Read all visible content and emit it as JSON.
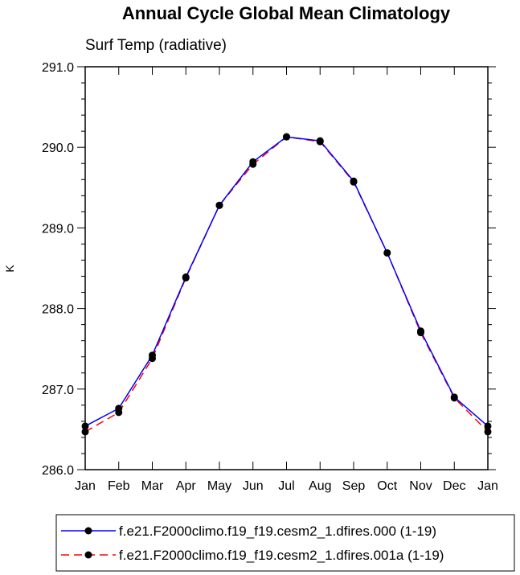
{
  "chart_data": {
    "type": "line",
    "title": "Annual Cycle Global Mean Climatology",
    "subtitle": "Surf Temp (radiative)",
    "xlabel": "",
    "ylabel": "K",
    "categories": [
      "Jan",
      "Feb",
      "Mar",
      "Apr",
      "May",
      "Jun",
      "Jul",
      "Aug",
      "Sep",
      "Oct",
      "Nov",
      "Dec",
      "Jan"
    ],
    "yticks": [
      286.0,
      287.0,
      288.0,
      289.0,
      290.0,
      291.0
    ],
    "ytick_labels": [
      "286.0",
      "287.0",
      "288.0",
      "289.0",
      "290.0",
      "291.0"
    ],
    "ylim": [
      286.0,
      291.0
    ],
    "grid": false,
    "legend_position": "bottom",
    "series": [
      {
        "name": "f.e21.F2000climo.f19_f19.cesm2_1.dfires.000 (1-19)",
        "color": "#0000ff",
        "dash": "solid",
        "marker": "dot",
        "values": [
          286.54,
          286.76,
          287.42,
          288.39,
          289.28,
          289.82,
          290.13,
          290.08,
          289.58,
          288.69,
          287.72,
          286.9,
          286.54
        ]
      },
      {
        "name": "f.e21.F2000climo.f19_f19.cesm2_1.dfires.001a (1-19)",
        "color": "#ff0000",
        "dash": "dashed",
        "marker": "dot",
        "values": [
          286.47,
          286.71,
          287.38,
          288.38,
          289.28,
          289.79,
          290.13,
          290.07,
          289.57,
          288.69,
          287.7,
          286.89,
          286.47
        ]
      }
    ]
  }
}
